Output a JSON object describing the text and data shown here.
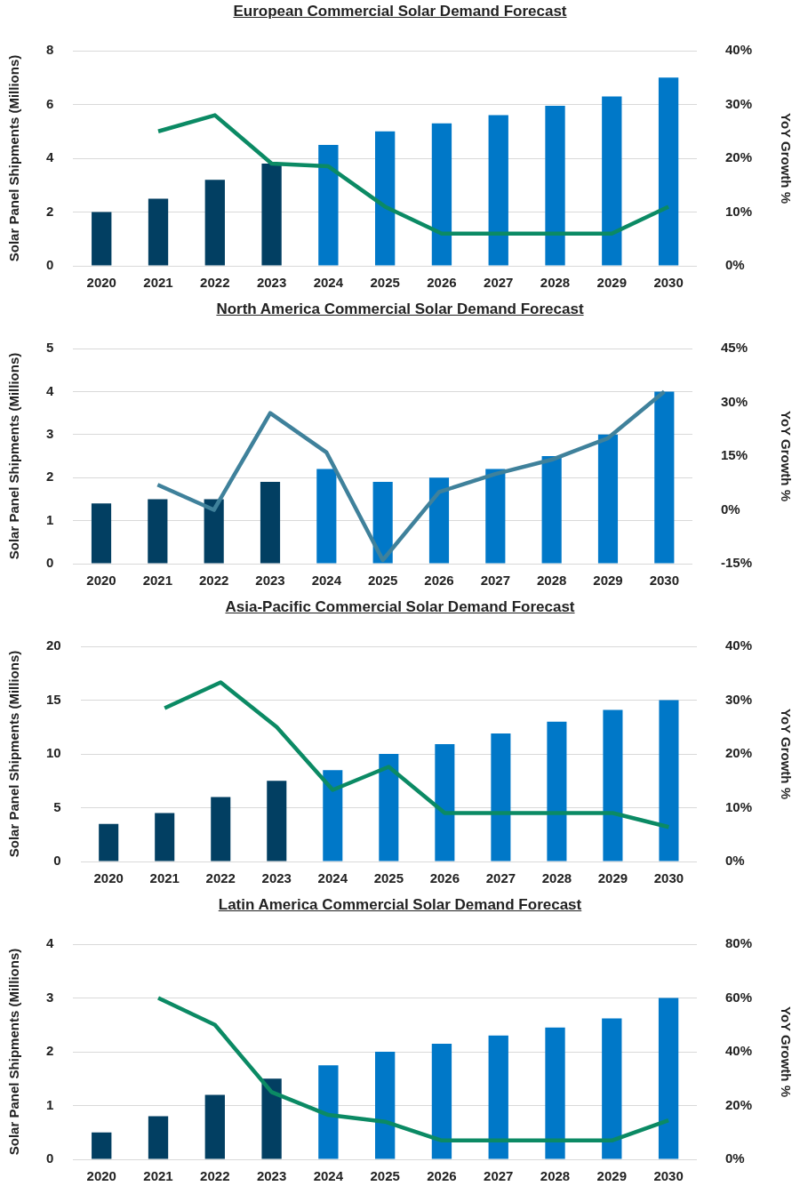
{
  "chart_data": [
    {
      "type": "bar",
      "title": "European Commercial Solar Demand Forecast",
      "ylabel": "Solar Panel Shipments (Millions)",
      "y2label": "YoY Growth %",
      "categories": [
        "2020",
        "2021",
        "2022",
        "2023",
        "2024",
        "2025",
        "2026",
        "2027",
        "2028",
        "2029",
        "2030"
      ],
      "series": [
        {
          "colors": [
            "#023f62",
            "#023f62",
            "#023f62",
            "#023f62",
            "#0078c8",
            "#0078c8",
            "#0078c8",
            "#0078c8",
            "#0078c8",
            "#0078c8",
            "#0078c8"
          ],
          "values": [
            2,
            2.5,
            3.2,
            3.8,
            4.5,
            5,
            5.3,
            5.6,
            5.95,
            6.3,
            7
          ]
        },
        {
          "type": "line",
          "axis": "y2",
          "color": "#0b8a64",
          "values": [
            null,
            25,
            28,
            19,
            18.5,
            11,
            6,
            6,
            6,
            6,
            11
          ]
        }
      ],
      "ylim": [
        0,
        8
      ],
      "yticks": [
        0,
        2,
        4,
        6,
        8
      ],
      "y2lim": [
        0,
        40
      ],
      "y2ticks": [
        {
          "value": 0,
          "label": "0%"
        },
        {
          "value": 10,
          "label": "10%"
        },
        {
          "value": 20,
          "label": "20%"
        },
        {
          "value": 30,
          "label": "30%"
        },
        {
          "value": 40,
          "label": "40%"
        }
      ],
      "grid": "y",
      "legend": false,
      "marker": "none"
    },
    {
      "type": "bar",
      "title": "North America Commercial Solar Demand Forecast",
      "ylabel": "Solar Panel Shipments (Millions)",
      "y2label": "YoY Growth %",
      "categories": [
        "2020",
        "2021",
        "2022",
        "2023",
        "2024",
        "2025",
        "2026",
        "2027",
        "2028",
        "2029",
        "2030"
      ],
      "series": [
        {
          "colors": [
            "#023f62",
            "#023f62",
            "#023f62",
            "#023f62",
            "#0078c8",
            "#0078c8",
            "#0078c8",
            "#0078c8",
            "#0078c8",
            "#0078c8",
            "#0078c8"
          ],
          "values": [
            1.4,
            1.5,
            1.5,
            1.9,
            2.2,
            1.9,
            2,
            2.2,
            2.5,
            3,
            4
          ]
        },
        {
          "type": "line",
          "axis": "y2",
          "color": "#3f819b",
          "values": [
            null,
            7,
            0,
            27,
            16,
            -14,
            5,
            10,
            14,
            20,
            33
          ]
        }
      ],
      "ylim": [
        0,
        5
      ],
      "yticks": [
        0,
        1,
        2,
        3,
        4,
        5
      ],
      "y2lim": [
        -15,
        45
      ],
      "y2ticks": [
        {
          "value": -15,
          "label": "-15%"
        },
        {
          "value": 0,
          "label": "0%"
        },
        {
          "value": 15,
          "label": "15%"
        },
        {
          "value": 30,
          "label": "30%"
        },
        {
          "value": 45,
          "label": "45%"
        }
      ],
      "grid": "y",
      "legend": false,
      "marker": "none"
    },
    {
      "type": "bar",
      "title": "Asia-Pacific Commercial Solar Demand Forecast",
      "ylabel": "Solar Panel Shipments (Millions)",
      "y2label": "YoY Growth %",
      "categories": [
        "2020",
        "2021",
        "2022",
        "2023",
        "2024",
        "2025",
        "2026",
        "2027",
        "2028",
        "2029",
        "2030"
      ],
      "series": [
        {
          "colors": [
            "#023f62",
            "#023f62",
            "#023f62",
            "#023f62",
            "#0078c8",
            "#0078c8",
            "#0078c8",
            "#0078c8",
            "#0078c8",
            "#0078c8",
            "#0078c8"
          ],
          "values": [
            3.5,
            4.5,
            6,
            7.5,
            8.5,
            10,
            10.9,
            11.9,
            13,
            14.1,
            15
          ]
        },
        {
          "type": "line",
          "axis": "y2",
          "color": "#0b8a64",
          "values": [
            null,
            28.5,
            33.3,
            25,
            13.3,
            17.6,
            9,
            9,
            9,
            9,
            6.4
          ]
        }
      ],
      "ylim": [
        0,
        20
      ],
      "yticks": [
        0,
        5,
        10,
        15,
        20
      ],
      "y2lim": [
        0,
        40
      ],
      "y2ticks": [
        {
          "value": 0,
          "label": "0%"
        },
        {
          "value": 10,
          "label": "10%"
        },
        {
          "value": 20,
          "label": "20%"
        },
        {
          "value": 30,
          "label": "30%"
        },
        {
          "value": 40,
          "label": "40%"
        }
      ],
      "grid": "y",
      "legend": false,
      "marker": "none"
    },
    {
      "type": "bar",
      "title": "Latin America Commercial Solar Demand Forecast",
      "ylabel": "Solar Panel Shipments (Millions)",
      "y2label": "YoY Growth %",
      "categories": [
        "2020",
        "2021",
        "2022",
        "2023",
        "2024",
        "2025",
        "2026",
        "2027",
        "2028",
        "2029",
        "2030"
      ],
      "series": [
        {
          "colors": [
            "#023f62",
            "#023f62",
            "#023f62",
            "#023f62",
            "#0078c8",
            "#0078c8",
            "#0078c8",
            "#0078c8",
            "#0078c8",
            "#0078c8",
            "#0078c8"
          ],
          "values": [
            0.5,
            0.8,
            1.2,
            1.5,
            1.75,
            2,
            2.15,
            2.3,
            2.45,
            2.62,
            3
          ]
        },
        {
          "type": "line",
          "axis": "y2",
          "color": "#0b8a64",
          "values": [
            null,
            60,
            50,
            25,
            16.5,
            14,
            7,
            7,
            7,
            7,
            14.5
          ]
        }
      ],
      "ylim": [
        0,
        4
      ],
      "yticks": [
        0,
        1,
        2,
        3,
        4
      ],
      "y2lim": [
        0,
        80
      ],
      "y2ticks": [
        {
          "value": 0,
          "label": "0%"
        },
        {
          "value": 20,
          "label": "20%"
        },
        {
          "value": 40,
          "label": "40%"
        },
        {
          "value": 60,
          "label": "60%"
        },
        {
          "value": 80,
          "label": "80%"
        }
      ],
      "grid": "y",
      "legend": false,
      "marker": "none"
    }
  ]
}
